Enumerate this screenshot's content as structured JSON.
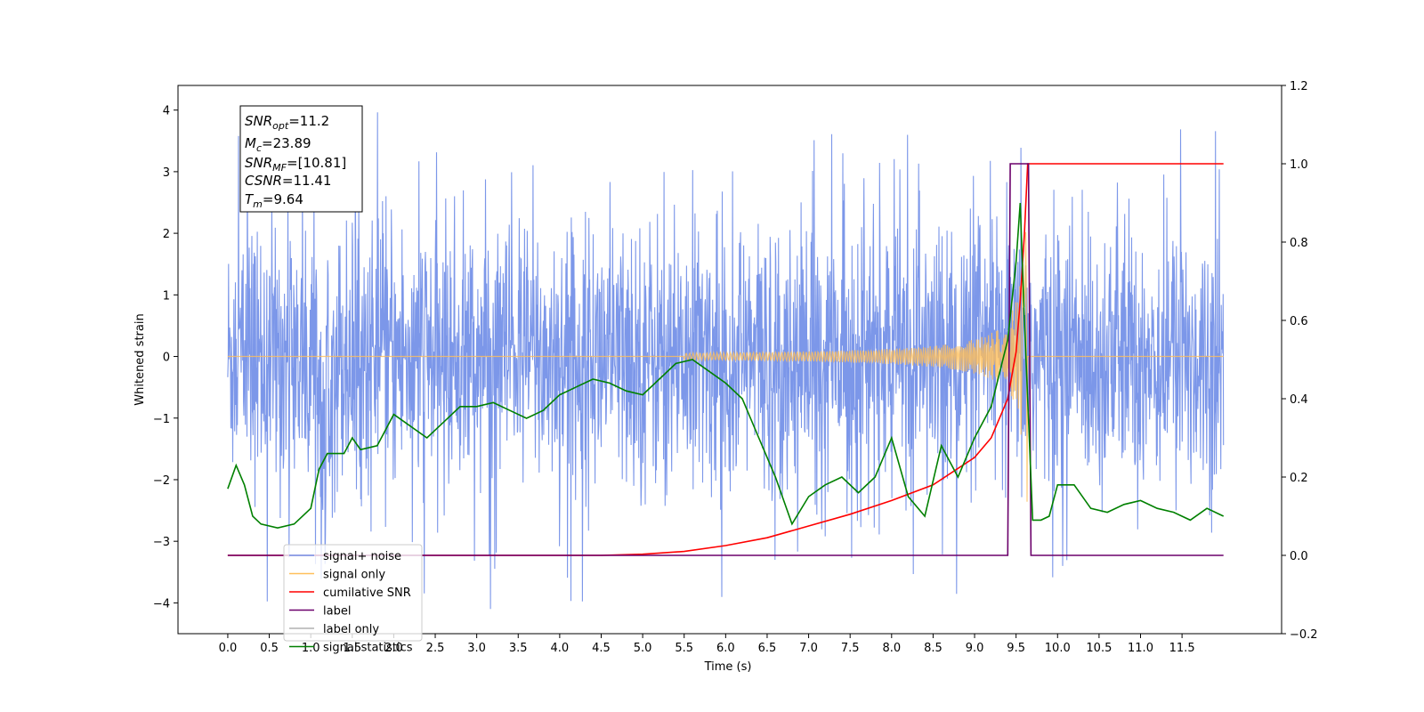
{
  "chart_data": {
    "type": "line",
    "xlabel": "Time (s)",
    "ylabel": "Whitened strain",
    "xlim": [
      -0.6,
      12.7
    ],
    "ylim": [
      -4.5,
      4.4
    ],
    "y2lim": [
      -0.2,
      1.2
    ],
    "x_ticks": [
      "0.0",
      "0.5",
      "1.0",
      "1.5",
      "2.0",
      "2.5",
      "3.0",
      "3.5",
      "4.0",
      "4.5",
      "5.0",
      "5.5",
      "6.0",
      "6.5",
      "7.0",
      "7.5",
      "8.0",
      "8.5",
      "9.0",
      "9.5",
      "10.0",
      "10.5",
      "11.0",
      "11.5"
    ],
    "y_ticks": [
      "4",
      "3",
      "2",
      "1",
      "0",
      "−1",
      "−2",
      "−3",
      "−4"
    ],
    "y2_ticks": [
      "1.2",
      "1.0",
      "0.8",
      "0.6",
      "0.4",
      "0.2",
      "0.0",
      "−0.2"
    ],
    "annotation": {
      "snr_opt": {
        "sym": "SNR",
        "sub": "opt",
        "val": "=11.2"
      },
      "mc": {
        "sym": "M",
        "sub": "c",
        "val": "=23.89"
      },
      "snr_mf": {
        "sym": "SNR",
        "sub": "MF",
        "val": "=[10.81]"
      },
      "csnr": {
        "sym": "CSNR",
        "sub": "",
        "val": "=11.41"
      },
      "tm": {
        "sym": "T",
        "sub": "m",
        "val": "=9.64"
      }
    },
    "legend": {
      "placement": "lower-left",
      "entries": [
        {
          "label": "signal+ noise",
          "color": "#7591e8"
        },
        {
          "label": "signal only",
          "color": "#ffbf5a"
        },
        {
          "label": "cumilative SNR",
          "color": "#ff0000"
        },
        {
          "label": "label",
          "color": "#6b006b"
        },
        {
          "label": "label only",
          "color": "#b0b0b0"
        },
        {
          "label": "signal statistics",
          "color": "#008000"
        }
      ]
    },
    "series": [
      {
        "name": "signal+ noise",
        "axis": "left",
        "color": "#7591e8",
        "x_range": [
          0,
          12.0
        ],
        "typical_abs": 1.8,
        "extreme_range": [
          -4.1,
          4.05
        ]
      },
      {
        "name": "signal only",
        "axis": "left",
        "color": "#ffbf5a",
        "chirp_start": 5.5,
        "merger": 9.64,
        "peak_amplitude": 3.0
      },
      {
        "name": "cumilative SNR",
        "axis": "right",
        "x": [
          0,
          4.5,
          5.0,
          5.5,
          6.0,
          6.5,
          7.0,
          7.5,
          8.0,
          8.5,
          9.0,
          9.2,
          9.4,
          9.5,
          9.55,
          9.6,
          9.64,
          12.0
        ],
        "y": [
          0,
          0,
          0.003,
          0.01,
          0.025,
          0.045,
          0.075,
          0.105,
          0.14,
          0.18,
          0.25,
          0.3,
          0.4,
          0.52,
          0.65,
          0.82,
          1.0,
          1.0
        ]
      },
      {
        "name": "label",
        "axis": "right",
        "x": [
          0,
          9.4,
          9.43,
          9.65,
          9.68,
          12.0
        ],
        "y": [
          0,
          0,
          1.0,
          1.0,
          0,
          0
        ]
      },
      {
        "name": "signal statistics",
        "axis": "right",
        "x": [
          0,
          0.1,
          0.2,
          0.3,
          0.4,
          0.6,
          0.8,
          1.0,
          1.1,
          1.2,
          1.4,
          1.5,
          1.6,
          1.8,
          1.9,
          2.0,
          2.2,
          2.4,
          2.6,
          2.8,
          3.0,
          3.2,
          3.4,
          3.6,
          3.8,
          4.0,
          4.2,
          4.4,
          4.6,
          4.8,
          5.0,
          5.2,
          5.4,
          5.6,
          5.8,
          6.0,
          6.2,
          6.4,
          6.6,
          6.8,
          7.0,
          7.2,
          7.4,
          7.6,
          7.8,
          8.0,
          8.2,
          8.4,
          8.6,
          8.8,
          9.0,
          9.2,
          9.4,
          9.5,
          9.55,
          9.6,
          9.65,
          9.7,
          9.8,
          9.9,
          10.0,
          10.2,
          10.4,
          10.6,
          10.8,
          11.0,
          11.2,
          11.4,
          11.6,
          11.8,
          12.0
        ],
        "y": [
          0.17,
          0.23,
          0.18,
          0.1,
          0.08,
          0.07,
          0.08,
          0.12,
          0.22,
          0.26,
          0.26,
          0.3,
          0.27,
          0.28,
          0.32,
          0.36,
          0.33,
          0.3,
          0.34,
          0.38,
          0.38,
          0.39,
          0.37,
          0.35,
          0.37,
          0.41,
          0.43,
          0.45,
          0.44,
          0.42,
          0.41,
          0.45,
          0.49,
          0.5,
          0.47,
          0.44,
          0.4,
          0.3,
          0.2,
          0.08,
          0.15,
          0.18,
          0.2,
          0.16,
          0.2,
          0.3,
          0.15,
          0.1,
          0.28,
          0.2,
          0.3,
          0.38,
          0.55,
          0.75,
          0.9,
          0.6,
          0.35,
          0.09,
          0.09,
          0.1,
          0.18,
          0.18,
          0.12,
          0.11,
          0.13,
          0.14,
          0.12,
          0.11,
          0.09,
          0.12,
          0.1
        ]
      }
    ]
  }
}
